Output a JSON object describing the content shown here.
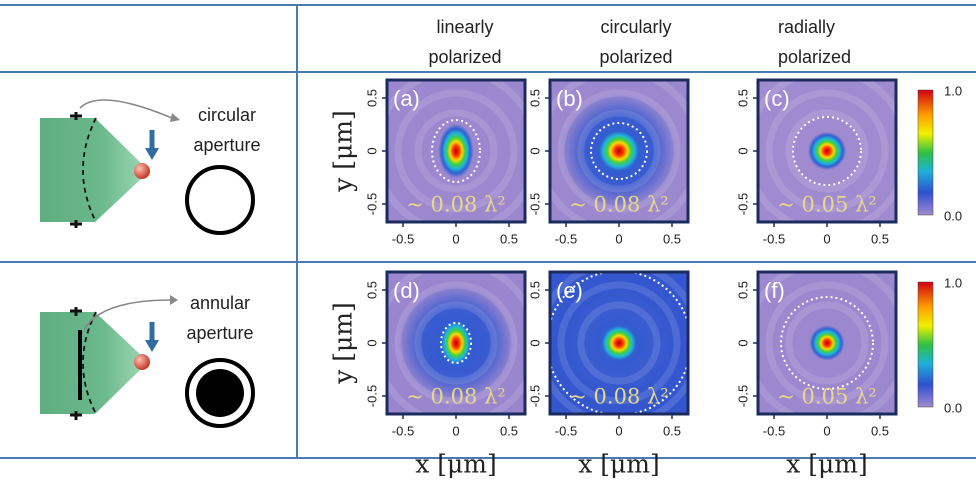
{
  "header": {
    "columns": [
      "linearly polarized",
      "circularly polarized",
      "radially polarized"
    ]
  },
  "rows": [
    {
      "label": "circular aperture",
      "panels": [
        {
          "tag": "(a)",
          "spot": "~ 0.08 λ²"
        },
        {
          "tag": "(b)",
          "spot": "~ 0.08 λ²"
        },
        {
          "tag": "(c)",
          "spot": "~ 0.05 λ²"
        }
      ],
      "colorbar": {
        "max": "1.0",
        "min": "0.0"
      }
    },
    {
      "label": "annular aperture",
      "panels": [
        {
          "tag": "(d)",
          "spot": "~ 0.08 λ²"
        },
        {
          "tag": "(e)",
          "spot": "~ 0.08 λ²"
        },
        {
          "tag": "(f)",
          "spot": "~ 0.05 λ²"
        }
      ],
      "colorbar": {
        "max": "1.0",
        "min": "0.0"
      }
    }
  ],
  "axes": {
    "ticks": [
      "-0.5",
      "0",
      "0.5"
    ],
    "xlabel": "x [μm]",
    "ylabel": "y [μm]"
  }
}
